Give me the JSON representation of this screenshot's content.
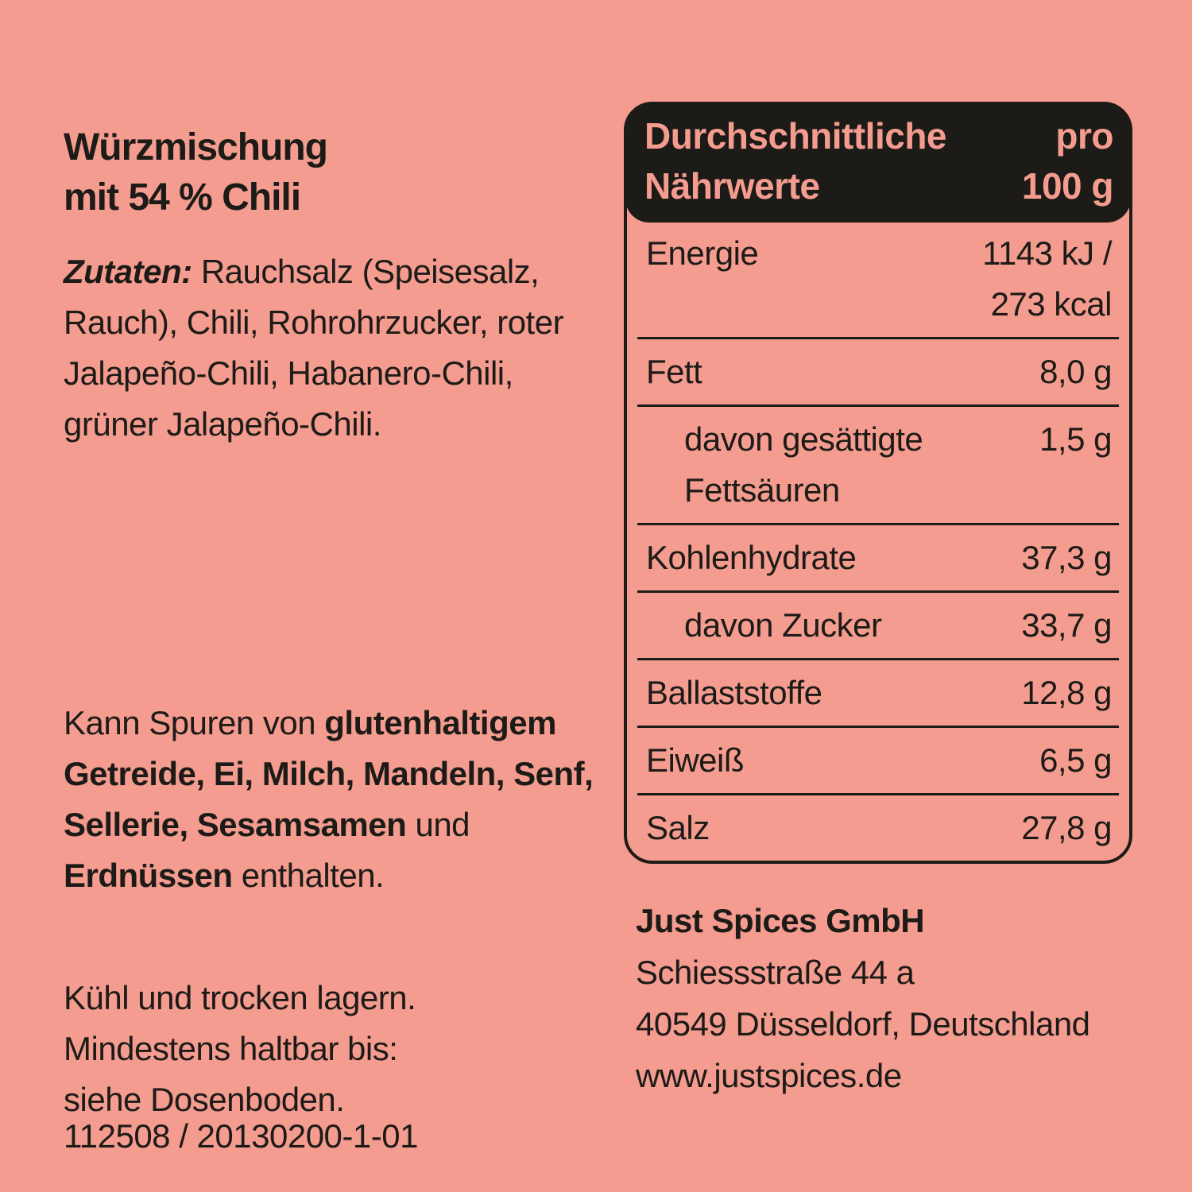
{
  "colors": {
    "background": "#F49C8F",
    "ink": "#1D1B17"
  },
  "product": {
    "title_lines": [
      "Würzmischung",
      "mit 54 % Chili"
    ],
    "ingredients_lines": [
      [
        {
          "t": "Zutaten:",
          "b": true,
          "i": true
        },
        " Rauchsalz (Speisesalz,"
      ],
      "Rauch), Chili, Rohrohrzucker, roter",
      "Jalapeño-Chili, Habanero-Chili,",
      "grüner Jalapeño-Chili."
    ],
    "allergen_lines": [
      [
        "Kann Spuren von ",
        {
          "t": "glutenhaltigem",
          "b": true
        }
      ],
      [
        {
          "t": "Getreide,",
          "b": true
        },
        " ",
        {
          "t": "Ei,",
          "b": true
        },
        " ",
        {
          "t": "Milch,",
          "b": true
        },
        " ",
        {
          "t": "Mandeln,",
          "b": true
        },
        " ",
        {
          "t": "Senf,",
          "b": true
        }
      ],
      [
        {
          "t": "Sellerie,",
          "b": true
        },
        " ",
        {
          "t": "Sesamsamen",
          "b": true
        },
        " und"
      ],
      [
        {
          "t": "Erdnüssen",
          "b": true
        },
        " enthalten."
      ]
    ],
    "storage_lines": [
      "Kühl und trocken lagern.",
      "Mindestens haltbar bis:",
      "siehe Dosenboden."
    ],
    "batch_code": "112508 / 20130200-1-01"
  },
  "nutrition": {
    "header": {
      "left_lines": [
        "Durchschnittliche",
        "Nährwerte"
      ],
      "right_lines": [
        "pro",
        "100 g"
      ]
    },
    "rows": [
      {
        "label_lines": [
          "Energie"
        ],
        "value_lines": [
          "1143 kJ /",
          "273 kcal"
        ],
        "indent": false
      },
      {
        "label_lines": [
          "Fett"
        ],
        "value_lines": [
          "8,0 g"
        ],
        "indent": false
      },
      {
        "label_lines": [
          "davon gesättigte",
          "Fettsäuren"
        ],
        "value_lines": [
          "1,5 g"
        ],
        "indent": true
      },
      {
        "label_lines": [
          "Kohlenhydrate"
        ],
        "value_lines": [
          "37,3 g"
        ],
        "indent": false
      },
      {
        "label_lines": [
          "davon Zucker"
        ],
        "value_lines": [
          "33,7 g"
        ],
        "indent": true
      },
      {
        "label_lines": [
          "Ballaststoffe"
        ],
        "value_lines": [
          "12,8 g"
        ],
        "indent": false
      },
      {
        "label_lines": [
          "Eiweiß"
        ],
        "value_lines": [
          "6,5 g"
        ],
        "indent": false
      },
      {
        "label_lines": [
          "Salz"
        ],
        "value_lines": [
          "27,8 g"
        ],
        "indent": false
      }
    ]
  },
  "company": {
    "lines": [
      [
        {
          "t": "Just Spices GmbH",
          "b": true
        }
      ],
      "Schiessstraße 44 a",
      "40549 Düsseldorf, Deutschland",
      "www.justspices.de"
    ]
  }
}
